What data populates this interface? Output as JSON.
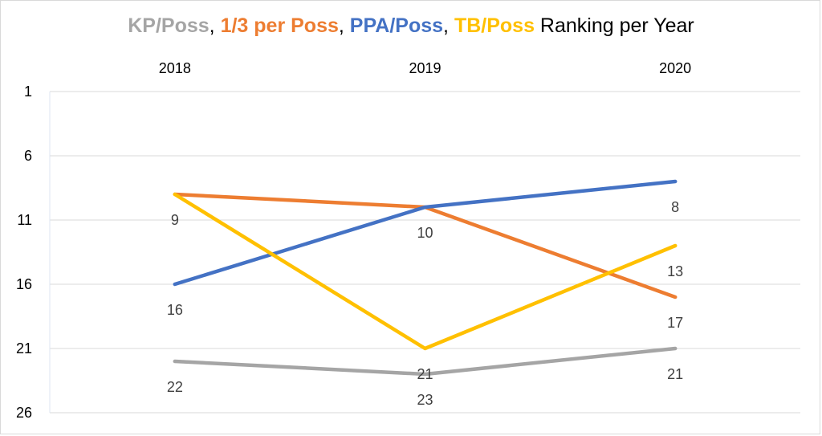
{
  "chart_data": {
    "type": "line",
    "title_parts": [
      {
        "text": "KP/Poss",
        "color": "#a5a5a5",
        "bold": true
      },
      {
        "text": ", ",
        "color": "#000000",
        "bold": false
      },
      {
        "text": "1/3 per Poss",
        "color": "#ed7d31",
        "bold": true
      },
      {
        "text": ", ",
        "color": "#000000",
        "bold": false
      },
      {
        "text": "PPA/Poss",
        "color": "#4472c4",
        "bold": true
      },
      {
        "text": ", ",
        "color": "#000000",
        "bold": false
      },
      {
        "text": "TB/Poss",
        "color": "#ffc000",
        "bold": true
      },
      {
        "text": " Ranking per Year",
        "color": "#000000",
        "bold": false
      }
    ],
    "categories": [
      "2018",
      "2019",
      "2020"
    ],
    "y_ticks": [
      "1",
      "6",
      "11",
      "16",
      "21",
      "26"
    ],
    "ylim": [
      1,
      26
    ],
    "y_reversed": true,
    "x_axis_position": "top",
    "grid": true,
    "series": [
      {
        "name": "KP/Poss",
        "color": "#a5a5a5",
        "values": [
          22,
          23,
          21
        ],
        "labels": [
          "22",
          "23",
          "21"
        ]
      },
      {
        "name": "1/3 per Poss",
        "color": "#ed7d31",
        "values": [
          9,
          10,
          17
        ],
        "labels": [
          "",
          "",
          "17"
        ]
      },
      {
        "name": "PPA/Poss",
        "color": "#4472c4",
        "values": [
          16,
          10,
          8
        ],
        "labels": [
          "16",
          "10",
          "8"
        ]
      },
      {
        "name": "TB/Poss",
        "color": "#ffc000",
        "values": [
          9,
          21,
          13
        ],
        "labels": [
          "9",
          "21",
          "13"
        ]
      }
    ]
  }
}
